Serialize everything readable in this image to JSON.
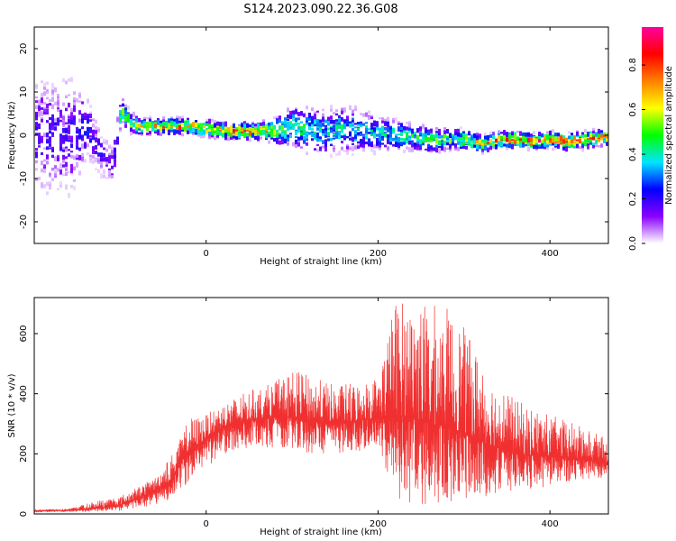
{
  "figure": {
    "title": "S124.2023.090.22.36.G08"
  },
  "chart_data": [
    {
      "type": "heatmap",
      "xlabel": "Height of straight line (km)",
      "ylabel": "Frequency (Hz)",
      "xlim": [
        -200,
        468
      ],
      "ylim": [
        -25,
        25
      ],
      "x_ticks": [
        0,
        200,
        400
      ],
      "y_ticks": [
        -20,
        -10,
        0,
        10,
        20
      ],
      "colorbar": {
        "label": "Normalized spectral amplitude",
        "range": [
          0,
          0.97
        ],
        "ticks": [
          0.0,
          0.2,
          0.4,
          0.6,
          0.8
        ],
        "colormap": [
          "#ffffff",
          "#8a00ff",
          "#0000ff",
          "#00e5ff",
          "#00ff00",
          "#ffff00",
          "#ff8000",
          "#ff0000",
          "#ff00a0"
        ]
      },
      "ridge": {
        "x": [
          -155,
          -140,
          -125,
          -115,
          -110,
          -100,
          -90,
          -80,
          -60,
          -40,
          -20,
          0,
          20,
          40,
          60,
          80,
          100,
          120,
          140,
          160,
          180,
          200,
          220,
          240,
          260,
          280,
          300,
          320,
          340,
          360,
          380,
          400,
          420,
          440,
          460,
          468
        ],
        "freq": [
          0,
          2,
          -4,
          -6,
          -7,
          6,
          3,
          2,
          2,
          2,
          2,
          1.5,
          1,
          1,
          1,
          1,
          2,
          1,
          1,
          1.5,
          1,
          0.5,
          0,
          -0.5,
          -1,
          -1,
          -1,
          -2,
          -1,
          -1,
          -1.5,
          -1,
          -1.5,
          -1,
          -0.5,
          -0.5
        ],
        "peak_amplitude": [
          0.2,
          0.25,
          0.2,
          0.15,
          0.15,
          0.5,
          0.6,
          0.65,
          0.7,
          0.75,
          0.75,
          0.75,
          0.8,
          0.85,
          0.8,
          0.6,
          0.5,
          0.45,
          0.4,
          0.4,
          0.4,
          0.4,
          0.45,
          0.45,
          0.5,
          0.55,
          0.6,
          0.7,
          0.75,
          0.8,
          0.85,
          0.85,
          0.85,
          0.85,
          0.8,
          0.8
        ],
        "spread_hz": [
          25,
          12,
          10,
          10,
          10,
          5,
          4,
          3,
          3,
          3,
          3,
          3,
          3,
          3,
          3,
          5,
          8,
          9,
          9,
          9,
          8,
          7,
          6,
          5,
          5,
          4,
          4,
          3,
          3,
          3,
          3,
          3,
          3,
          3,
          3,
          3
        ]
      }
    },
    {
      "type": "line",
      "xlabel": "Height of straight line (km)",
      "ylabel": "SNR (10 * v/v)",
      "xlim": [
        -200,
        468
      ],
      "ylim": [
        0,
        720
      ],
      "x_ticks": [
        0,
        200,
        400
      ],
      "y_ticks": [
        0,
        200,
        400,
        600
      ],
      "color": "#f03030",
      "envelope": {
        "x": [
          -200,
          -160,
          -120,
          -100,
          -80,
          -60,
          -40,
          -30,
          -20,
          0,
          20,
          50,
          80,
          100,
          120,
          150,
          180,
          200,
          220,
          240,
          260,
          280,
          300,
          330,
          360,
          400,
          430,
          460,
          468
        ],
        "center": [
          10,
          12,
          20,
          30,
          50,
          80,
          110,
          180,
          210,
          250,
          290,
          310,
          320,
          320,
          310,
          300,
          310,
          320,
          330,
          320,
          300,
          290,
          270,
          230,
          200,
          190,
          185,
          170,
          165
        ],
        "max": [
          15,
          18,
          50,
          60,
          90,
          120,
          200,
          250,
          320,
          330,
          370,
          410,
          440,
          480,
          460,
          430,
          440,
          460,
          720,
          710,
          700,
          690,
          620,
          460,
          380,
          330,
          300,
          260,
          240
        ],
        "min": [
          5,
          6,
          8,
          10,
          20,
          30,
          40,
          70,
          110,
          150,
          200,
          220,
          220,
          220,
          200,
          200,
          210,
          220,
          50,
          30,
          30,
          40,
          40,
          60,
          80,
          90,
          110,
          120,
          120
        ]
      }
    }
  ]
}
